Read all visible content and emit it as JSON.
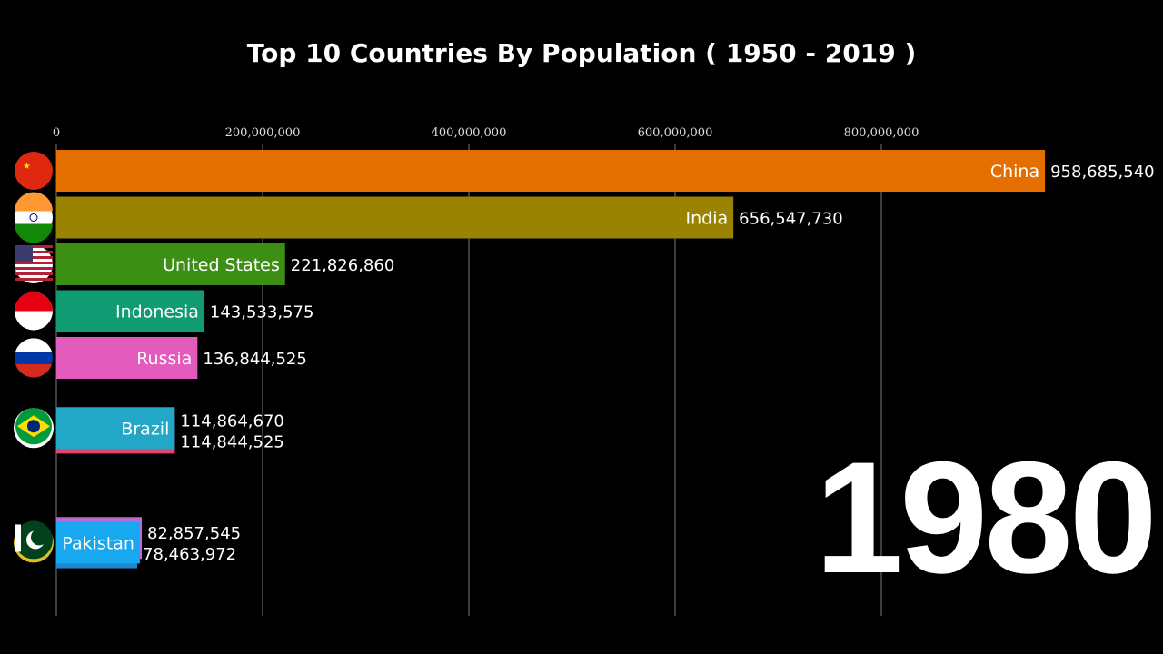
{
  "chart_data": {
    "type": "bar",
    "title": "Top 10 Countries By Population ( 1950 - 2019 )",
    "year": "1980",
    "xlim": [
      0,
      1000000000
    ],
    "x_ticks": [
      0,
      200000000,
      400000000,
      600000000,
      800000000
    ],
    "x_tick_labels": [
      "0",
      "200,000,000",
      "400,000,000",
      "600,000,000",
      "800,000,000"
    ],
    "grid": true,
    "bars": [
      {
        "name": "China",
        "value": 958685540,
        "label": "958,685,540",
        "color": "#e46f00",
        "flag": "china-flag",
        "slot": 0
      },
      {
        "name": "India",
        "value": 656547730,
        "label": "656,547,730",
        "color": "#9a8300",
        "flag": "india-flag",
        "slot": 1
      },
      {
        "name": "United States",
        "value": 221826860,
        "label": "221,826,860",
        "color": "#3d8e14",
        "flag": "usa-flag",
        "slot": 2
      },
      {
        "name": "Indonesia",
        "value": 143533575,
        "label": "143,533,575",
        "color": "#109b73",
        "flag": "indonesia-flag",
        "slot": 3
      },
      {
        "name": "Russia",
        "value": 136844525,
        "label": "136,844,525",
        "color": "#e25bbd",
        "flag": "russia-flag",
        "slot": 4
      },
      {
        "name": "",
        "value": 114844525,
        "label": "114,844,525",
        "color": "#e2466f",
        "flag": "",
        "slot": 5.6
      },
      {
        "name": "Brazil",
        "value": 114864670,
        "label": "114,864,670",
        "color": "#22a7c6",
        "flag": "brazil-flag",
        "slot": 5.5
      },
      {
        "name": "",
        "value": 82857545,
        "label": "82,857,545",
        "color": "#b86ad6",
        "flag": "",
        "slot": 7.85
      },
      {
        "name": "",
        "value": 78463972,
        "label": "78,463,972",
        "color": "#1f86d0",
        "flag": "",
        "slot": 8.05
      },
      {
        "name": "Pakistan",
        "value": 81000000,
        "label": "",
        "color": "#17a8f0",
        "flag": "pakistan-flag",
        "slot": 7.95
      }
    ]
  }
}
